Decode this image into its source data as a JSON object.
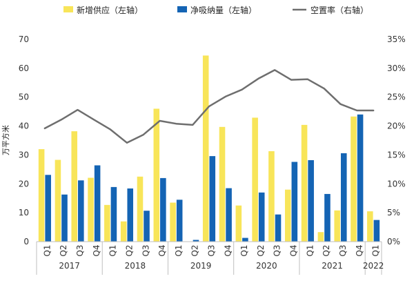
{
  "chart_data": {
    "type": "bar",
    "ylabel": "万平方米",
    "ylim": [
      0,
      70
    ],
    "y2lim": [
      0,
      0.35
    ],
    "y_ticks": [
      "0",
      "10",
      "20",
      "30",
      "40",
      "50",
      "60",
      "70"
    ],
    "y2_ticks": [
      "0%",
      "5%",
      "10%",
      "15%",
      "20%",
      "25%",
      "30%",
      "35%"
    ],
    "legend_position": "top",
    "categories": [
      "Q1",
      "Q2",
      "Q3",
      "Q4",
      "Q1",
      "Q2",
      "Q3",
      "Q4",
      "Q1",
      "Q2",
      "Q3",
      "Q4",
      "Q1",
      "Q2",
      "Q3",
      "Q4",
      "Q1",
      "Q2",
      "Q3",
      "Q4",
      "Q1"
    ],
    "years": [
      {
        "label": "2017",
        "count": 4
      },
      {
        "label": "2018",
        "count": 4
      },
      {
        "label": "2019",
        "count": 4
      },
      {
        "label": "2020",
        "count": 4
      },
      {
        "label": "2021",
        "count": 4
      },
      {
        "label": "2022",
        "count": 1
      }
    ],
    "series": [
      {
        "name": "新增供应（左轴）",
        "type": "bar",
        "axis": "left",
        "color": "#F8E559",
        "values": [
          32.0,
          28.3,
          38.2,
          22.1,
          12.7,
          7.0,
          22.5,
          46.0,
          13.5,
          0,
          64.4,
          39.7,
          12.5,
          42.9,
          31.3,
          18.0,
          40.4,
          3.3,
          10.8,
          43.3,
          10.5
        ]
      },
      {
        "name": "净吸纳量（左轴）",
        "type": "bar",
        "axis": "left",
        "color": "#1464B4",
        "values": [
          23.1,
          16.3,
          21.2,
          26.4,
          18.9,
          18.4,
          10.7,
          22.0,
          14.5,
          0.6,
          29.6,
          18.5,
          1.3,
          17.0,
          9.4,
          27.6,
          28.2,
          16.5,
          30.6,
          44.0,
          7.5
        ]
      },
      {
        "name": "空置率（右轴）",
        "type": "line",
        "axis": "right",
        "color": "#6E6E6E",
        "values": [
          0.196,
          0.211,
          0.228,
          0.211,
          0.194,
          0.171,
          0.185,
          0.209,
          0.204,
          0.202,
          0.234,
          0.251,
          0.263,
          0.282,
          0.297,
          0.28,
          0.281,
          0.265,
          0.238,
          0.227,
          0.227
        ]
      }
    ]
  }
}
